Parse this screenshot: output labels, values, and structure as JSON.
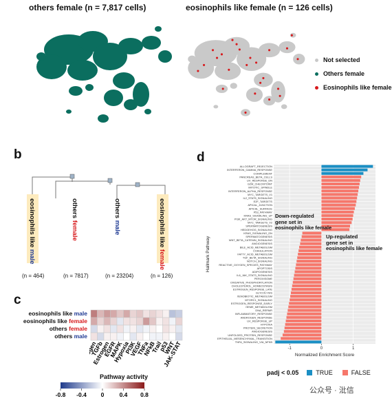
{
  "panel_a": {
    "left_title": "others female (n = 7,817 cells)",
    "right_title": "eosinophils like female (n = 126 cells)",
    "legend": [
      {
        "label": "Not selected",
        "color": "#c9c9c9"
      },
      {
        "label": "Others female",
        "color": "#0b6e5f"
      },
      {
        "label": "Eosinophils like female",
        "color": "#d7191c"
      }
    ]
  },
  "panel_b": {
    "letter": "b",
    "groups": [
      {
        "prefix": "eosinophils like ",
        "sex": "male",
        "count": "(n = 464)"
      },
      {
        "prefix": "others ",
        "sex": "female",
        "count": "(n = 7817)"
      },
      {
        "prefix": "others ",
        "sex": "male",
        "count": "(n = 23204)"
      },
      {
        "prefix": "eosinophils like ",
        "sex": "female",
        "count": "(n = 126)"
      }
    ]
  },
  "panel_c": {
    "letter": "c",
    "rows": [
      {
        "prefix": "eosinophils like ",
        "sex": "male"
      },
      {
        "prefix": "eosinophils like ",
        "sex": "female"
      },
      {
        "prefix": "others ",
        "sex": "female"
      },
      {
        "prefix": "others ",
        "sex": "male"
      }
    ],
    "columns": [
      "Androgen",
      "TGFb",
      "Estrogen",
      "EGFR",
      "MAPK",
      "Hypoxia",
      "PI3K",
      "VEGF",
      "TNFa",
      "NFkB",
      "Trail",
      "p53",
      "WNT",
      "JAK-STAT"
    ],
    "values": [
      [
        0.45,
        0.25,
        0.35,
        0.3,
        0.2,
        0.3,
        0.15,
        0.2,
        0.1,
        0.15,
        0.1,
        0.05,
        -0.25,
        -0.2
      ],
      [
        0.3,
        0.15,
        0.25,
        0.15,
        -0.1,
        0.1,
        0.1,
        0.15,
        0.35,
        0.2,
        0.05,
        0.1,
        -0.05,
        0.15
      ],
      [
        -0.15,
        0.05,
        0.1,
        -0.1,
        0.1,
        -0.05,
        0.05,
        -0.1,
        -0.05,
        0.05,
        0.0,
        0.1,
        0.05,
        -0.1
      ],
      [
        0.1,
        -0.15,
        0.05,
        0.05,
        -0.05,
        0.0,
        -0.1,
        0.05,
        0.0,
        -0.05,
        -0.05,
        0.05,
        0.0,
        -0.15
      ]
    ],
    "colorbar": {
      "title": "Pathway activity",
      "ticks": [
        "-0.8",
        "-0.4",
        "0",
        "0.4",
        "0.8"
      ],
      "low_color": "#1f3b8c",
      "mid_color": "#ffffff",
      "high_color": "#8b1a1a"
    }
  },
  "panel_d": {
    "letter": "d",
    "ylabel": "Hallmark Pathway",
    "xlabel": "Normalized Enrichment Score",
    "xticks": [
      "-1",
      "0",
      "1"
    ],
    "annotation_down": "Down-regulated\ngene set in\neosinophils like female",
    "annotation_up": "Up-regulated\ngene set in\neosinophils like female",
    "legend_title": "padj < 0.05",
    "legend_items": [
      {
        "label": "TRUE",
        "color": "#1b8fc4"
      },
      {
        "label": "FALSE",
        "color": "#f6776b"
      }
    ]
  },
  "chart_data": {
    "type": "bar",
    "orientation": "horizontal",
    "xlabel": "Normalized Enrichment Score",
    "ylabel": "Hallmark Pathway",
    "xlim": [
      -1.5,
      1.7
    ],
    "categories": [
      "ALLOGRAFT_REJECTION",
      "INTERFERON_GAMMA_RESPONSE",
      "COMPLEMENT",
      "PANCREAS_BETA_CELLS",
      "UV_RESPONSE_DN",
      "G2M_CHECKPOINT",
      "MITOTIC_SPINDLE",
      "INTERFERON_ALPHA_RESPONSE",
      "MYC_TARGETS_V1",
      "IL2_STAT5_SIGNALING",
      "E2F_TARGETS",
      "APICAL_JUNCTION",
      "APICAL_SURFACE",
      "P53_PATHWAY",
      "KRAS_SIGNALING_UP",
      "PI3K_AKT_MTOR_SIGNALING",
      "MYC_TARGETS_V2",
      "SPERMATOGENESIS",
      "HEDGEHOG_SIGNALING",
      "KRAS_SIGNALING_DN",
      "SPERMATOGENESIS",
      "WNT_BETA_CATENIN_SIGNALING",
      "ANGIOGENESIS",
      "BILE_ACID_METABOLISM",
      "COAGULATION",
      "FATTY_ACID_METABOLISM",
      "TGF_BETA_SIGNALING",
      "NOTCH_SIGNALING",
      "REACTIVE_OXYGEN_SPECIES_PATHWAY",
      "APOPTOSIS",
      "ADIPOGENESIS",
      "IL6_JAK_STAT3_SIGNALING",
      "PEROXISOME",
      "OXIDATIVE_PHOSPHORYLATION",
      "CHOLESTEROL_HOMEOSTASIS",
      "ESTROGEN_RESPONSE_LATE",
      "GLYCOLYSIS",
      "XENOBIOTIC_METABOLISM",
      "MTORC1_SIGNALING",
      "ESTROGEN_RESPONSE_EARLY",
      "HEME_METABOLISM",
      "DNA_REPAIR",
      "INFLAMMATORY_RESPONSE",
      "ANDROGEN_RESPONSE",
      "UV_RESPONSE_UP",
      "HYPOXIA",
      "PROTEIN_SECRETION",
      "ANGIOGENESIS",
      "UNFOLDED_PROTEIN_RESPONSE",
      "EPITHELIAL_MESENCHYMAL_TRANSITION",
      "TNFA_SIGNALING_VIA_NFKB"
    ],
    "values": [
      1.62,
      1.45,
      1.32,
      1.25,
      1.22,
      1.2,
      1.18,
      1.16,
      1.14,
      1.12,
      1.1,
      1.08,
      1.05,
      1.02,
      1.0,
      0.98,
      0.95,
      0.9,
      0.88,
      -0.6,
      -0.62,
      -0.65,
      -0.67,
      -0.7,
      -0.72,
      -0.74,
      -0.76,
      -0.78,
      -0.8,
      -0.82,
      -0.84,
      -0.86,
      -0.88,
      -0.9,
      -0.92,
      -0.94,
      -0.96,
      -0.98,
      -1.0,
      -1.02,
      -1.04,
      -1.06,
      -1.08,
      -1.1,
      -1.12,
      -1.14,
      -1.16,
      -1.18,
      -1.22,
      -1.28,
      -1.45
    ],
    "padj_significant": [
      true,
      true,
      true,
      false,
      false,
      false,
      false,
      false,
      false,
      false,
      false,
      false,
      false,
      false,
      false,
      false,
      false,
      false,
      false,
      false,
      false,
      false,
      false,
      false,
      false,
      false,
      false,
      false,
      false,
      false,
      false,
      false,
      false,
      false,
      false,
      false,
      false,
      false,
      false,
      false,
      false,
      false,
      false,
      false,
      false,
      false,
      false,
      false,
      false,
      false,
      true
    ]
  },
  "watermark": {
    "text": "公众号 · 沘信"
  }
}
